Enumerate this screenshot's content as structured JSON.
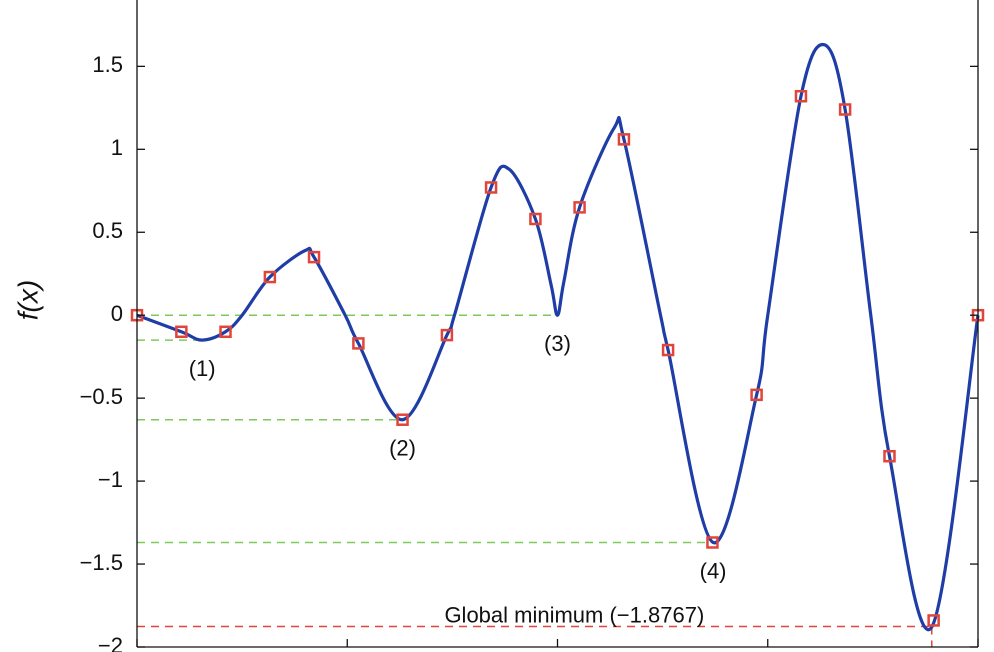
{
  "chart_data": {
    "type": "line",
    "y_label": "f(x)",
    "xlim": [
      0,
      4
    ],
    "xticks": [
      0,
      1,
      2,
      3,
      4
    ],
    "ylim": [
      -2,
      1.9
    ],
    "yticks": [
      {
        "value": -2,
        "label": "−2"
      },
      {
        "value": -1.5,
        "label": "−1.5"
      },
      {
        "value": -1,
        "label": "−1"
      },
      {
        "value": -0.5,
        "label": "−0.5"
      },
      0,
      0.5,
      1,
      1.5
    ],
    "series": [
      {
        "kind": "curve",
        "color": "#1f3da6",
        "x": [
          0,
          0.211,
          0.31,
          0.421,
          0.5,
          0.632,
          0.8,
          0.842,
          0.99,
          1.053,
          1.263,
          1.474,
          1.51,
          1.684,
          1.77,
          1.895,
          1.97,
          2.0,
          2.03,
          2.105,
          2.27,
          2.316,
          2.49,
          2.526,
          2.74,
          2.947,
          3.0,
          3.158,
          3.27,
          3.368,
          3.49,
          3.579,
          3.78,
          4
        ],
        "values": [
          0,
          -0.1,
          -0.15,
          -0.1,
          0,
          0.23,
          0.39,
          0.35,
          0,
          -0.17,
          -0.63,
          -0.12,
          0,
          0.77,
          0.88,
          0.58,
          0.18,
          0,
          0.2,
          0.65,
          1.13,
          1.06,
          0,
          -0.21,
          -1.37,
          -0.48,
          0,
          1.32,
          1.63,
          1.24,
          0,
          -0.85,
          -1.88,
          0
        ]
      },
      {
        "kind": "markers",
        "color": "#e0453a",
        "x": [
          0,
          0.211,
          0.421,
          0.632,
          0.842,
          1.053,
          1.263,
          1.474,
          1.684,
          1.895,
          2.105,
          2.316,
          2.526,
          2.737,
          2.947,
          3.158,
          3.368,
          3.579,
          3.789,
          4
        ],
        "values": [
          0,
          -0.1,
          -0.1,
          0.23,
          0.35,
          -0.17,
          -0.63,
          -0.12,
          0.77,
          0.58,
          0.65,
          1.06,
          -0.21,
          -1.37,
          -0.48,
          1.32,
          1.24,
          -0.85,
          -1.84,
          0
        ]
      }
    ],
    "reference_lines": [
      {
        "label": "(1)",
        "y": -0.15,
        "x": 0.31,
        "color": "#7dc95b",
        "label_position": "below"
      },
      {
        "label": "(2)",
        "y": -0.63,
        "x": 1.263,
        "color": "#7dc95b",
        "label_position": "below"
      },
      {
        "label": "(3)",
        "y": 0,
        "x": 2.0,
        "color": "#7dc95b",
        "label_position": "below"
      },
      {
        "label": "(4)",
        "y": -1.37,
        "x": 2.74,
        "color": "#7dc95b",
        "label_position": "below"
      },
      {
        "label": "Global minimum (−1.8767)",
        "y": -1.8767,
        "x": 3.78,
        "color": "#e0453a",
        "label_position": "above"
      }
    ]
  }
}
